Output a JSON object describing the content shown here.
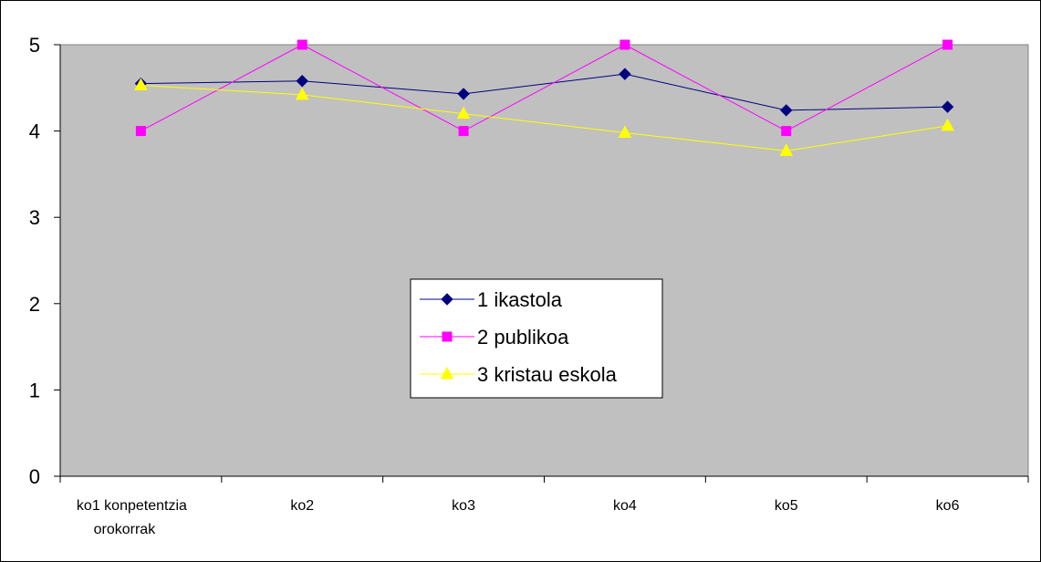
{
  "chart_data": {
    "type": "line",
    "categories": [
      "ko1  konpetentzia\norokorrak",
      "ko2",
      "ko3",
      "ko4",
      "ko5",
      "ko6"
    ],
    "series": [
      {
        "name": "1  ikastola",
        "values": [
          4.55,
          4.58,
          4.43,
          4.66,
          4.24,
          4.28
        ],
        "color": "#000080",
        "marker": "diamond"
      },
      {
        "name": "2  publikoa",
        "values": [
          4.0,
          5.0,
          4.0,
          5.0,
          4.0,
          5.0
        ],
        "color": "#ff00ff",
        "marker": "square"
      },
      {
        "name": "3 kristau eskola",
        "values": [
          4.53,
          4.42,
          4.2,
          3.98,
          3.77,
          4.06
        ],
        "color": "#ffff00",
        "marker": "triangle"
      }
    ],
    "title": "",
    "xlabel": "",
    "ylabel": "",
    "ylim": [
      0,
      5
    ],
    "yticks": [
      "0",
      "1",
      "2",
      "3",
      "4",
      "5"
    ],
    "grid": false,
    "plot_background": "#c0c0c0",
    "legend_position": "center"
  }
}
